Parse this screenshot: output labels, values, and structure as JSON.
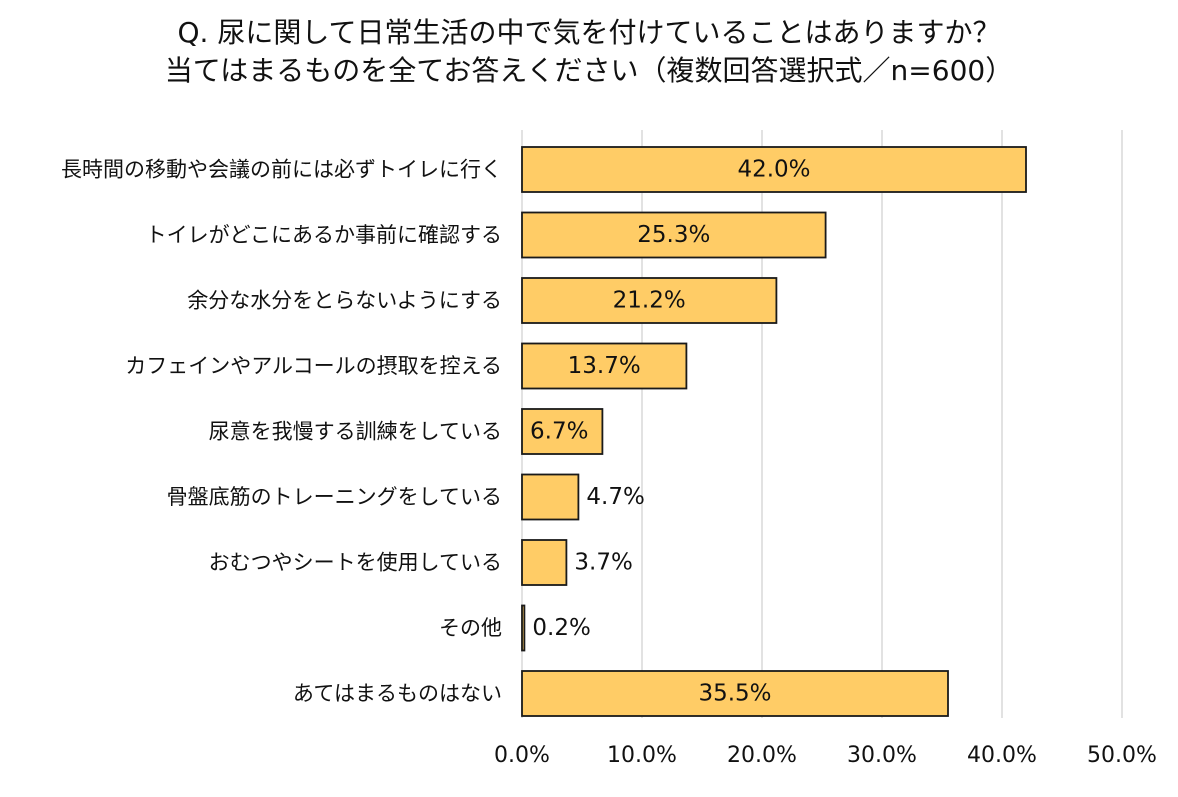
{
  "chart_data": {
    "type": "bar",
    "orientation": "horizontal",
    "title_lines": [
      "Q. 尿に関して日常生活の中で気を付けていることはありますか？",
      "当てはまるものを全てお答えください（複数回答選択式／n=600）"
    ],
    "categories": [
      "長時間の移動や会議の前には必ずトイレに行く",
      "トイレがどこにあるか事前に確認する",
      "余分な水分をとらないようにする",
      "カフェインやアルコールの摂取を控える",
      "尿意を我慢する訓練をしている",
      "骨盤底筋のトレーニングをしている",
      "おむつやシートを使用している",
      "その他",
      "あてはまるものはない"
    ],
    "values": [
      42.0,
      25.3,
      21.2,
      13.7,
      6.7,
      4.7,
      3.7,
      0.2,
      35.5
    ],
    "data_labels": [
      "42.0%",
      "25.3%",
      "21.2%",
      "13.7%",
      "6.7%",
      "4.7%",
      "3.7%",
      "0.2%",
      "35.5%"
    ],
    "xlim": [
      0,
      50
    ],
    "xticks": [
      0,
      10,
      20,
      30,
      40,
      50
    ],
    "xtick_labels": [
      "0.0%",
      "10.0%",
      "20.0%",
      "30.0%",
      "40.0%",
      "50.0%"
    ],
    "grid": "vertical",
    "legend": "none",
    "colors": {
      "bar_fill": "#FFCC66",
      "bar_stroke": "#1a1a1a",
      "grid": "#d9d9d9"
    }
  }
}
